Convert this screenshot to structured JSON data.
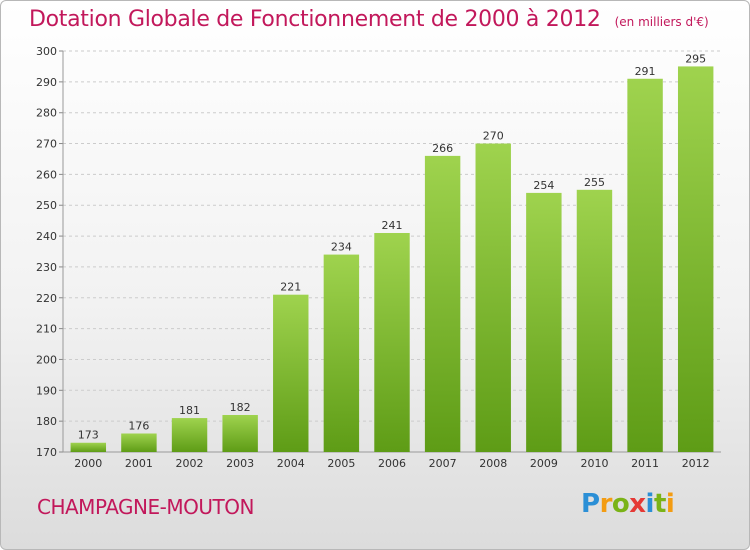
{
  "title": "Dotation Globale de Fonctionnement de 2000 à 2012",
  "subtitle": "(en milliers d'€)",
  "commune": "CHAMPAGNE-MOUTON",
  "logo": {
    "letters": [
      "P",
      "r",
      "o",
      "x",
      "i",
      "t",
      "i"
    ],
    "colors": [
      "#2b8fd6",
      "#f39c12",
      "#7ab317",
      "#e53935",
      "#2b8fd6",
      "#7ab317",
      "#f39c12"
    ]
  },
  "colors": {
    "title": "#c2185b",
    "bar_top": "#9fd34e",
    "bar_bottom": "#5e9c16",
    "grid": "#cccccc"
  },
  "chart_data": {
    "type": "bar",
    "title": "Dotation Globale de Fonctionnement de 2000 à 2012",
    "subtitle": "(en milliers d'€)",
    "categories": [
      "2000",
      "2001",
      "2002",
      "2003",
      "2004",
      "2005",
      "2006",
      "2007",
      "2008",
      "2009",
      "2010",
      "2011",
      "2012"
    ],
    "values": [
      173,
      176,
      181,
      182,
      221,
      234,
      241,
      266,
      270,
      254,
      255,
      291,
      295
    ],
    "data_labels": [
      "173",
      "176",
      "181",
      "182",
      "221",
      "234",
      "241",
      "266",
      "270",
      "254",
      "255",
      "291",
      "295"
    ],
    "ylim": [
      170,
      300
    ],
    "yticks": [
      170,
      180,
      190,
      200,
      210,
      220,
      230,
      240,
      250,
      260,
      270,
      280,
      290,
      300
    ],
    "ytick_labels": [
      "170",
      "180",
      "190",
      "200",
      "210",
      "220",
      "230",
      "240",
      "250",
      "260",
      "270",
      "280",
      "290",
      "300"
    ],
    "grid": "horizontal dashed",
    "legend": "none"
  }
}
